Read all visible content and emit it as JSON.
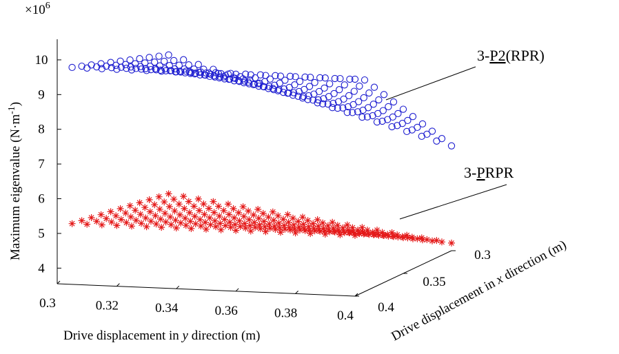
{
  "chart_data": {
    "type": "scatter",
    "projection": "3d",
    "title": "",
    "zlabel_main": "Maximum eigenvalue (N·m",
    "zlabel_sup": "-1",
    "zlabel_close": ")",
    "zscale_base": "×10",
    "zscale_exp": "6",
    "ylabel_prefix": "Drive displacement in ",
    "ylabel_var": "y",
    "ylabel_suffix": " direction (m)",
    "xlabel_prefix": "Drive displacement in ",
    "xlabel_var": "x",
    "xlabel_suffix": " direction (m)",
    "y_ticks": [
      "0.3",
      "0.32",
      "0.34",
      "0.36",
      "0.38",
      "0.4"
    ],
    "y_tick_values": [
      0.3,
      0.32,
      0.34,
      0.36,
      0.38,
      0.4
    ],
    "x_ticks": [
      "0.3",
      "0.35",
      "0.4"
    ],
    "x_tick_values": [
      0.3,
      0.35,
      0.4
    ],
    "z_ticks": [
      "4",
      "5",
      "6",
      "7",
      "8",
      "9",
      "10"
    ],
    "z_tick_values": [
      4,
      5,
      6,
      7,
      8,
      9,
      10
    ],
    "y_range": [
      0.3,
      0.4
    ],
    "x_range": [
      0.3,
      0.4
    ],
    "z_range": [
      3.5,
      10
    ],
    "grid": {
      "y_start": 0.305,
      "y_step": 0.005,
      "y_count": 20,
      "x_start": 0.3,
      "x_step": 0.01,
      "x_count": 11
    },
    "series": [
      {
        "name": "3-P2(RPR)",
        "marker": "circle",
        "color": "#1c1cd0",
        "z_min": 6.0,
        "z_max": 9.8,
        "label_pre": "3-",
        "label_ul": "P",
        "label_ul2": "2",
        "label_post": "(RPR)"
      },
      {
        "name": "3-PRPR",
        "marker": "asterisk",
        "color": "#e41a1a",
        "z_min": 3.5,
        "z_max": 5.3,
        "label_pre": "3-",
        "label_ul": "P",
        "label_post": "RPR"
      }
    ]
  }
}
